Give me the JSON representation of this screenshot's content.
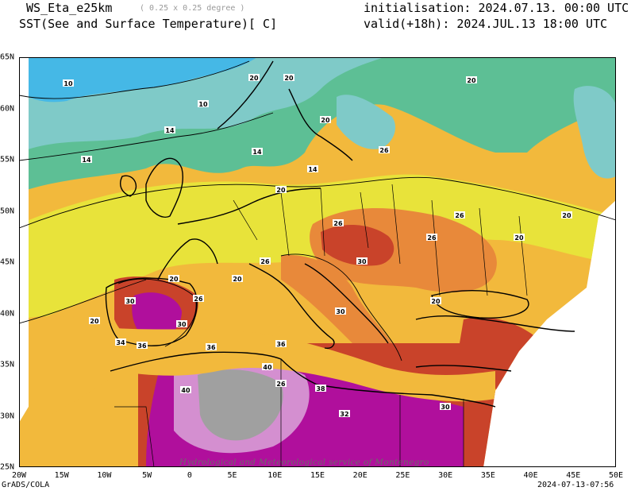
{
  "header": {
    "model": "WS_Eta_e25km",
    "resolution": "( 0.25 x 0.25 degree )",
    "variable": "SST(See and Surface Temperature)[ C]",
    "init": "initialisation: 2024.07.13. 00:00 UTC",
    "valid": "valid(+18h): 2024.JUL.13 18:00 UTC"
  },
  "axes": {
    "x_ticks": [
      "20W",
      "15W",
      "10W",
      "5W",
      "0",
      "5E",
      "10E",
      "15E",
      "20E",
      "25E",
      "30E",
      "35E",
      "40E",
      "45E",
      "50E"
    ],
    "y_ticks": [
      "65N",
      "60N",
      "55N",
      "50N",
      "45N",
      "40N",
      "35N",
      "30N",
      "25N"
    ]
  },
  "contour_labels": [
    "10",
    "14",
    "20",
    "26",
    "30",
    "32",
    "34",
    "36",
    "38",
    "40"
  ],
  "footer": {
    "software": "GrADS/COLA",
    "timestamp": "2024-07-13-07:56",
    "watermark": "Hydrological and Meteorological service of Montenegro"
  },
  "colors": {
    "t10": "#45b8e6",
    "t14": "#7fcac8",
    "t17": "#5dbf95",
    "t20": "#e8e33a",
    "t24": "#f2b93c",
    "t26": "#e8893a",
    "t30": "#c9432a",
    "t34": "#b00f9c",
    "t38": "#d48fd0",
    "t40": "#a0a0a0"
  }
}
